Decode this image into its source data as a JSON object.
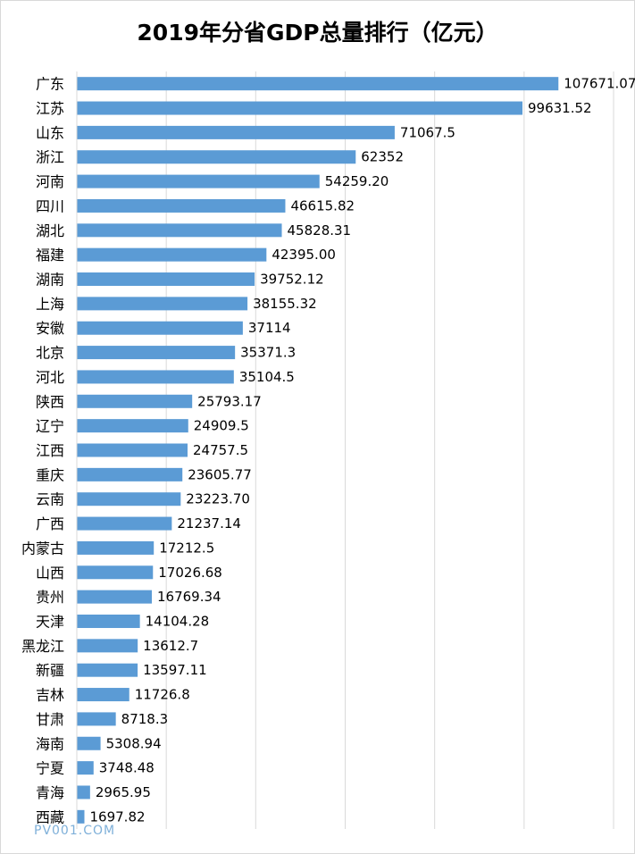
{
  "title": "2019年分省GDP总量排行（亿元）",
  "watermark": "PV001.COM",
  "colors": {
    "bar": "#5b9bd5",
    "grid": "#d9d9d9",
    "text": "#000000"
  },
  "chart_data": {
    "type": "bar",
    "orientation": "horizontal",
    "title": "2019年分省GDP总量排行（亿元）",
    "xlabel": "",
    "ylabel": "",
    "xlim": [
      0,
      120000
    ],
    "grid": true,
    "legend": "none",
    "categories": [
      "广东",
      "江苏",
      "山东",
      "浙江",
      "河南",
      "四川",
      "湖北",
      "福建",
      "湖南",
      "上海",
      "安徽",
      "北京",
      "河北",
      "陕西",
      "辽宁",
      "江西",
      "重庆",
      "云南",
      "广西",
      "内蒙古",
      "山西",
      "贵州",
      "天津",
      "黑龙江",
      "新疆",
      "吉林",
      "甘肃",
      "海南",
      "宁夏",
      "青海",
      "西藏"
    ],
    "values": [
      107671.07,
      99631.52,
      71067.5,
      62352,
      54259.2,
      46615.82,
      45828.31,
      42395.0,
      39752.12,
      38155.32,
      37114,
      35371.3,
      35104.5,
      25793.17,
      24909.5,
      24757.5,
      23605.77,
      23223.7,
      21237.14,
      17212.5,
      17026.68,
      16769.34,
      14104.28,
      13612.7,
      13597.11,
      11726.8,
      8718.3,
      5308.94,
      3748.48,
      2965.95,
      1697.82
    ],
    "data_labels": [
      "107671.07",
      "99631.52",
      "71067.5",
      "62352",
      "54259.20",
      "46615.82",
      "45828.31",
      "42395.00",
      "39752.12",
      "38155.32",
      "37114",
      "35371.3",
      "35104.5",
      "25793.17",
      "24909.5",
      "24757.5",
      "23605.77",
      "23223.70",
      "21237.14",
      "17212.5",
      "17026.68",
      "16769.34",
      "14104.28",
      "13612.7",
      "13597.11",
      "11726.8",
      "8718.3",
      "5308.94",
      "3748.48",
      "2965.95",
      "1697.82"
    ]
  }
}
